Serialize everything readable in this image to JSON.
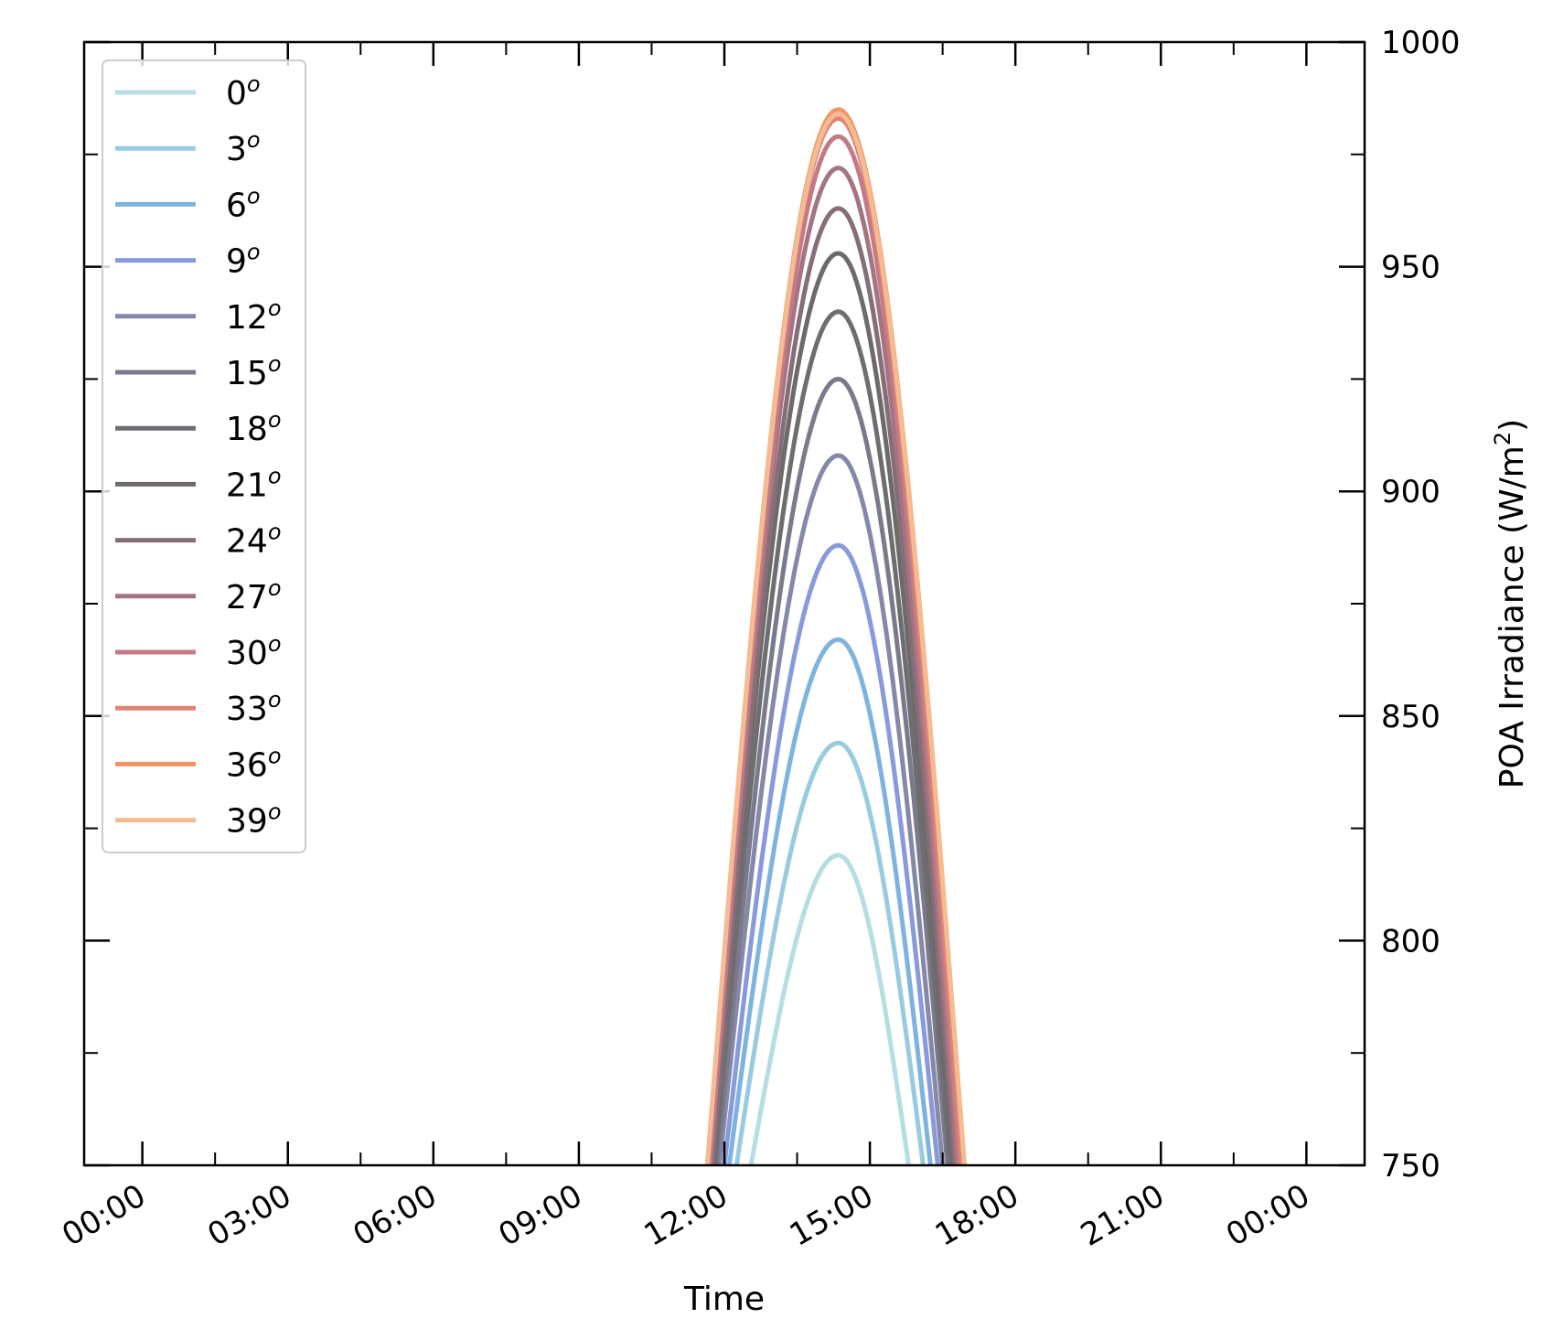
{
  "chart_data": {
    "type": "line",
    "xlabel": "Time",
    "ylabel_main": "POA Irradiance (W/m",
    "ylabel_sup": "2",
    "ylabel_close": ")",
    "y_axis_side": "right",
    "ylim": [
      750,
      1000
    ],
    "yticks": [
      750,
      800,
      850,
      900,
      950,
      1000
    ],
    "xlim_hours": [
      -2.4,
      50.4
    ],
    "xticks": [
      {
        "hour": 0,
        "label": "00:00"
      },
      {
        "hour": 6,
        "label": "03:00"
      },
      {
        "hour": 12,
        "label": "06:00"
      },
      {
        "hour": 18,
        "label": "09:00"
      },
      {
        "hour": 24,
        "label": "12:00"
      },
      {
        "hour": 30,
        "label": "15:00"
      },
      {
        "hour": 36,
        "label": "18:00"
      },
      {
        "hour": 42,
        "label": "21:00"
      },
      {
        "hour": 48,
        "label": "00:00"
      }
    ],
    "peak_hour": 28.7,
    "legend_position": "upper-left",
    "grid": false,
    "series": [
      {
        "name": "0",
        "peak": 819,
        "x_start": 25.1,
        "x_end": 31.6,
        "color": "#b5dde3"
      },
      {
        "name": "3",
        "peak": 844,
        "x_start": 24.5,
        "x_end": 32.2,
        "color": "#99cbe0"
      },
      {
        "name": "6",
        "peak": 867,
        "x_start": 24.2,
        "x_end": 32.5,
        "color": "#7eb3e0"
      },
      {
        "name": "9",
        "peak": 888,
        "x_start": 24.0,
        "x_end": 32.8,
        "color": "#8899dc"
      },
      {
        "name": "12",
        "peak": 908,
        "x_start": 23.8,
        "x_end": 33.0,
        "color": "#8588a8"
      },
      {
        "name": "15",
        "peak": 925,
        "x_start": 23.7,
        "x_end": 33.2,
        "color": "#7a7a8c"
      },
      {
        "name": "18",
        "peak": 940,
        "x_start": 23.6,
        "x_end": 33.3,
        "color": "#6e6e72"
      },
      {
        "name": "21",
        "peak": 953,
        "x_start": 23.5,
        "x_end": 33.4,
        "color": "#6e6a6a"
      },
      {
        "name": "24",
        "peak": 963,
        "x_start": 23.5,
        "x_end": 33.5,
        "color": "#866e78"
      },
      {
        "name": "27",
        "peak": 972,
        "x_start": 23.4,
        "x_end": 33.6,
        "color": "#a47482"
      },
      {
        "name": "30",
        "peak": 979,
        "x_start": 23.4,
        "x_end": 33.7,
        "color": "#c47a86"
      },
      {
        "name": "33",
        "peak": 983,
        "x_start": 23.3,
        "x_end": 33.8,
        "color": "#de8578"
      },
      {
        "name": "36",
        "peak": 985,
        "x_start": 23.3,
        "x_end": 33.9,
        "color": "#f09664"
      },
      {
        "name": "39",
        "peak": 984,
        "x_start": 23.3,
        "x_end": 33.9,
        "color": "#f5bc94"
      }
    ]
  }
}
